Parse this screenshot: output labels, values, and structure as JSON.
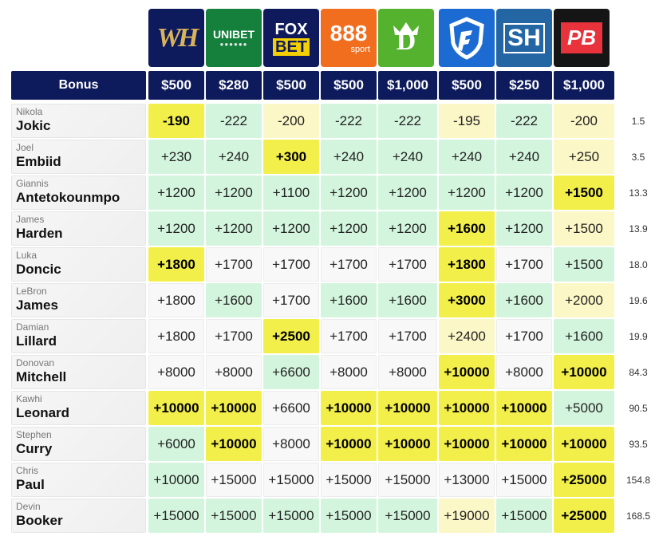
{
  "bonus_label": "Bonus",
  "books": [
    {
      "name": "william-hill",
      "logo_text": "WH",
      "bg": "#0d1a5b",
      "bonus": "$500"
    },
    {
      "name": "unibet",
      "logo_text": "UNIBET",
      "bg": "#14803c",
      "bonus": "$280"
    },
    {
      "name": "fox-bet",
      "logo_text_1": "FOX",
      "logo_text_2": "BET",
      "bg": "#0e1a5c",
      "bonus": "$500"
    },
    {
      "name": "888sport",
      "logo_text": "888",
      "logo_sub": "sport",
      "bg": "#f26e1f",
      "bonus": "$500"
    },
    {
      "name": "draftkings",
      "logo_text": "D",
      "bg": "#55b22f",
      "bonus": "$1,000"
    },
    {
      "name": "fanduel",
      "logo_text": "",
      "bg": "#1c6bd3",
      "bonus": "$500"
    },
    {
      "name": "sugarhouse",
      "logo_text": "SH",
      "bg": "#2466a4",
      "bonus": "$250"
    },
    {
      "name": "pointsbet",
      "logo_text": "PB",
      "bg": "#151515",
      "bonus": "$1,000"
    }
  ],
  "players": [
    {
      "first": "Nikola",
      "last": "Jokic",
      "avg": "1.5",
      "odds": [
        "-190",
        "-222",
        "-200",
        "-222",
        "-222",
        "-195",
        "-222",
        "-200"
      ],
      "styles": [
        "best",
        "green",
        "yellow",
        "green",
        "green",
        "yellow",
        "green",
        "yellow"
      ]
    },
    {
      "first": "Joel",
      "last": "Embiid",
      "avg": "3.5",
      "odds": [
        "+230",
        "+240",
        "+300",
        "+240",
        "+240",
        "+240",
        "+240",
        "+250"
      ],
      "styles": [
        "green",
        "green",
        "best",
        "green",
        "green",
        "green",
        "green",
        "yellow"
      ]
    },
    {
      "first": "Giannis",
      "last": "Antetokounmpo",
      "avg": "13.3",
      "odds": [
        "+1200",
        "+1200",
        "+1100",
        "+1200",
        "+1200",
        "+1200",
        "+1200",
        "+1500"
      ],
      "styles": [
        "green",
        "green",
        "green",
        "green",
        "green",
        "green",
        "green",
        "best"
      ]
    },
    {
      "first": "James",
      "last": "Harden",
      "avg": "13.9",
      "odds": [
        "+1200",
        "+1200",
        "+1200",
        "+1200",
        "+1200",
        "+1600",
        "+1200",
        "+1500"
      ],
      "styles": [
        "green",
        "green",
        "green",
        "green",
        "green",
        "best",
        "green",
        "yellow"
      ]
    },
    {
      "first": "Luka",
      "last": "Doncic",
      "avg": "18.0",
      "odds": [
        "+1800",
        "+1700",
        "+1700",
        "+1700",
        "+1700",
        "+1800",
        "+1700",
        "+1500"
      ],
      "styles": [
        "best",
        "white",
        "white",
        "white",
        "white",
        "best",
        "white",
        "green"
      ]
    },
    {
      "first": "LeBron",
      "last": "James",
      "avg": "19.6",
      "odds": [
        "+1800",
        "+1600",
        "+1700",
        "+1600",
        "+1600",
        "+3000",
        "+1600",
        "+2000"
      ],
      "styles": [
        "white",
        "green",
        "white",
        "green",
        "green",
        "best",
        "green",
        "yellow"
      ]
    },
    {
      "first": "Damian",
      "last": "Lillard",
      "avg": "19.9",
      "odds": [
        "+1800",
        "+1700",
        "+2500",
        "+1700",
        "+1700",
        "+2400",
        "+1700",
        "+1600"
      ],
      "styles": [
        "white",
        "white",
        "best",
        "white",
        "white",
        "yellow",
        "white",
        "green"
      ]
    },
    {
      "first": "Donovan",
      "last": "Mitchell",
      "avg": "84.3",
      "odds": [
        "+8000",
        "+8000",
        "+6600",
        "+8000",
        "+8000",
        "+10000",
        "+8000",
        "+10000"
      ],
      "styles": [
        "white",
        "white",
        "green",
        "white",
        "white",
        "best",
        "white",
        "best"
      ]
    },
    {
      "first": "Kawhi",
      "last": "Leonard",
      "avg": "90.5",
      "odds": [
        "+10000",
        "+10000",
        "+6600",
        "+10000",
        "+10000",
        "+10000",
        "+10000",
        "+5000"
      ],
      "styles": [
        "best",
        "best",
        "white",
        "best",
        "best",
        "best",
        "best",
        "green"
      ]
    },
    {
      "first": "Stephen",
      "last": "Curry",
      "avg": "93.5",
      "odds": [
        "+6000",
        "+10000",
        "+8000",
        "+10000",
        "+10000",
        "+10000",
        "+10000",
        "+10000"
      ],
      "styles": [
        "green",
        "best",
        "white",
        "best",
        "best",
        "best",
        "best",
        "best"
      ]
    },
    {
      "first": "Chris",
      "last": "Paul",
      "avg": "154.8",
      "odds": [
        "+10000",
        "+15000",
        "+15000",
        "+15000",
        "+15000",
        "+13000",
        "+15000",
        "+25000"
      ],
      "styles": [
        "green",
        "white",
        "white",
        "white",
        "white",
        "white",
        "white",
        "best"
      ]
    },
    {
      "first": "Devin",
      "last": "Booker",
      "avg": "168.5",
      "odds": [
        "+15000",
        "+15000",
        "+15000",
        "+15000",
        "+15000",
        "+19000",
        "+15000",
        "+25000"
      ],
      "styles": [
        "green",
        "green",
        "green",
        "green",
        "green",
        "yellow",
        "green",
        "best"
      ]
    }
  ]
}
